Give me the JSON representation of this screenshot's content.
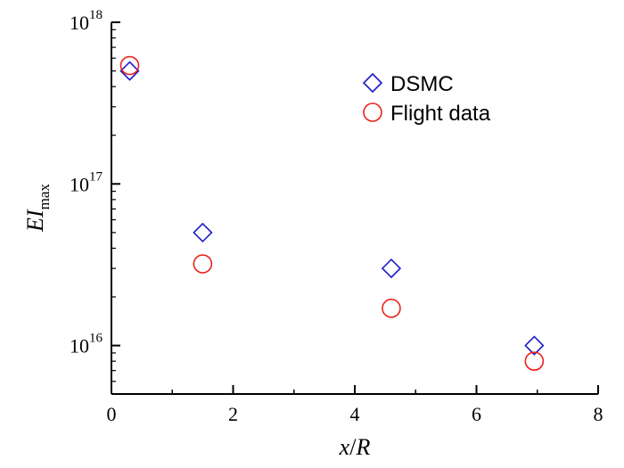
{
  "chart_data": {
    "type": "scatter",
    "title": "",
    "xlabel": "x/R",
    "ylabel": "EI_max",
    "ylabel_parts": {
      "main": "EI",
      "sub": "max"
    },
    "xlabel_parts": {
      "a": "x",
      "slash": "/",
      "b": "R"
    },
    "xlim": [
      0,
      8
    ],
    "ylim_log10": [
      15.7,
      18
    ],
    "yscale": "log",
    "x_ticks": [
      0,
      2,
      4,
      6,
      8
    ],
    "x_tick_labels": [
      "0",
      "2",
      "4",
      "6",
      "8"
    ],
    "y_ticks_exp": [
      16,
      17,
      18
    ],
    "y_tick_base": "10",
    "y_tick_exponents": [
      "16",
      "17",
      "18"
    ],
    "legend_position": "top-right",
    "series": [
      {
        "name": "DSMC",
        "marker": "diamond",
        "color": "#1a1acc",
        "x": [
          0.3,
          1.5,
          4.6,
          6.95
        ],
        "y": [
          5e+17,
          5e+16,
          3e+16,
          1e+16
        ]
      },
      {
        "name": "Flight data",
        "marker": "circle",
        "color": "#e8231c",
        "x": [
          0.3,
          1.5,
          4.6,
          6.95
        ],
        "y": [
          5.4e+17,
          3.2e+16,
          1.7e+16,
          8000000000000000.0
        ]
      }
    ]
  }
}
